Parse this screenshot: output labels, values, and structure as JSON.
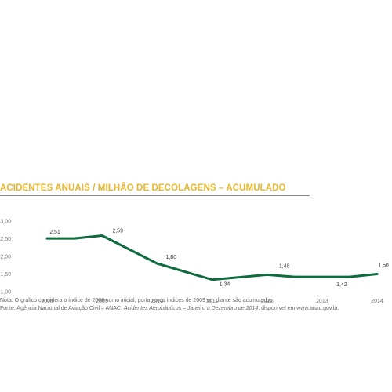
{
  "title": "ACIDENTES ANUAIS / MILHÃO DE DECOLAGENS – ACUMULADO",
  "colors": {
    "title": "#e9b62a",
    "line": "#0e6b3c",
    "axis_text": "#777777"
  },
  "chart_data": {
    "type": "line",
    "title": "ACIDENTES ANUAIS / MILHÃO DE DECOLAGENS – ACUMULADO",
    "xlabel": "",
    "ylabel": "",
    "ylim": [
      1.0,
      3.0
    ],
    "yticks": [
      "3,00",
      "2,50",
      "2,00",
      "1,50",
      "1,00"
    ],
    "ytick_values": [
      3.0,
      2.5,
      2.0,
      1.5,
      1.0
    ],
    "categories": [
      "2008",
      "2009",
      "2010",
      "2011",
      "2012",
      "2013",
      "2014"
    ],
    "series": [
      {
        "name": "",
        "points": [
          {
            "x": 2008.0,
            "y": 2.51,
            "label": "2,51"
          },
          {
            "x": 2008.5,
            "y": 2.51,
            "label": ""
          },
          {
            "x": 2009.0,
            "y": 2.59,
            "label": "2,59"
          },
          {
            "x": 2010.0,
            "y": 1.8,
            "label": "1,80"
          },
          {
            "x": 2011.0,
            "y": 1.34,
            "label": "1,34"
          },
          {
            "x": 2012.0,
            "y": 1.48,
            "label": "1,48"
          },
          {
            "x": 2012.5,
            "y": 1.42,
            "label": ""
          },
          {
            "x": 2013.5,
            "y": 1.42,
            "label": "1,42"
          },
          {
            "x": 2014.0,
            "y": 1.5,
            "label": "1,50"
          }
        ]
      }
    ],
    "grid": false,
    "legend": "none"
  },
  "notes": {
    "line1": "Nota: O gráfico considera o índice de 2008 como inicial, portanto os índices de 2009 em diante são acumulados.",
    "line2_a": "Fonte: Agência Nacional de Aviação Civil – ANAC. ",
    "line2_b": "Acidentes Aeronáuticos – Janeiro a Dezembro de 2014",
    "line2_c": ", disponível em www.anac.gov.br."
  }
}
